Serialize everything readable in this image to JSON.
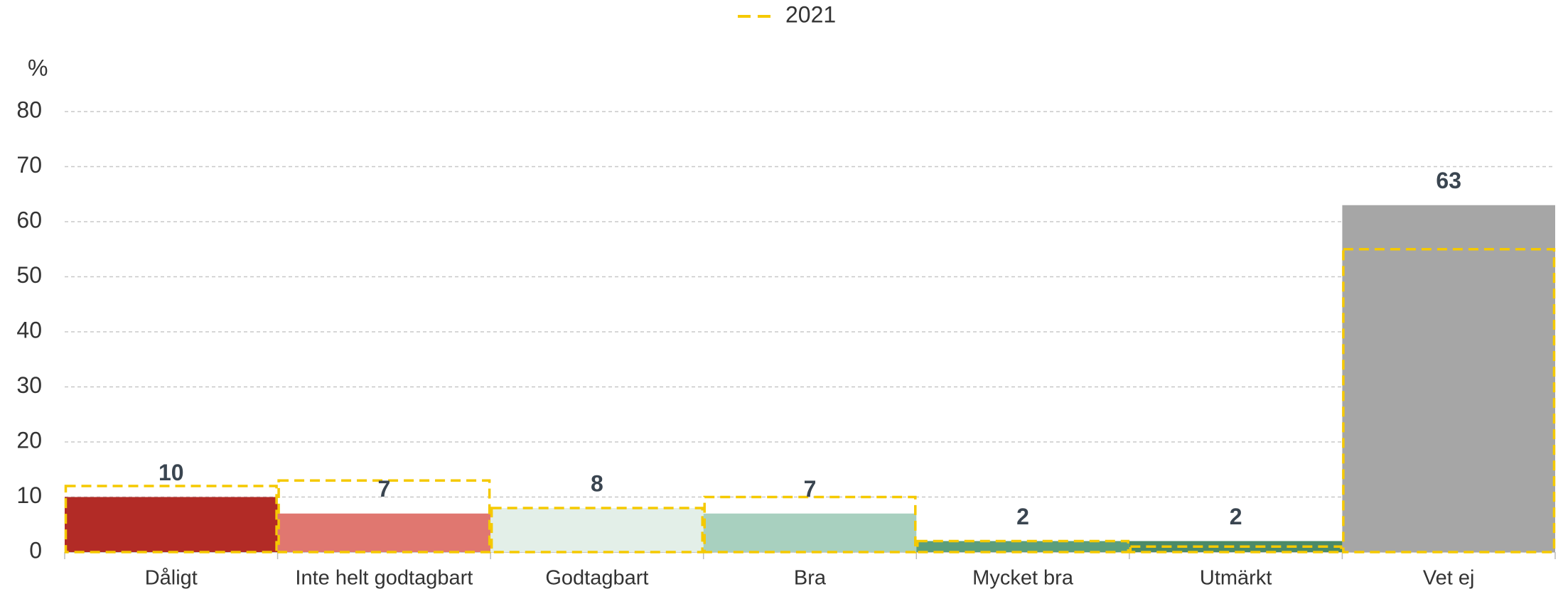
{
  "chart_data": {
    "type": "bar",
    "ylabel": "%",
    "categories": [
      "Dåligt",
      "Inte helt godtagbart",
      "Godtagbart",
      "Bra",
      "Mycket bra",
      "Utmärkt",
      "Vet ej"
    ],
    "series": [
      {
        "colors": [
          "#b22b26",
          "#e07770",
          "#e3efe8",
          "#a8d0bf",
          "#5b9e7c",
          "#4a8a68",
          "#a6a6a6"
        ],
        "values": [
          10,
          7,
          8,
          7,
          2,
          2,
          63
        ]
      },
      {
        "name": "2021",
        "color": "#f5c900",
        "style": "dashed",
        "values": [
          12,
          13,
          8,
          10,
          2,
          1,
          55
        ]
      }
    ],
    "ylim": [
      0,
      80
    ],
    "yticks": [
      0,
      10,
      20,
      30,
      40,
      50,
      60,
      70,
      80
    ],
    "grid": true,
    "legend": "top"
  }
}
